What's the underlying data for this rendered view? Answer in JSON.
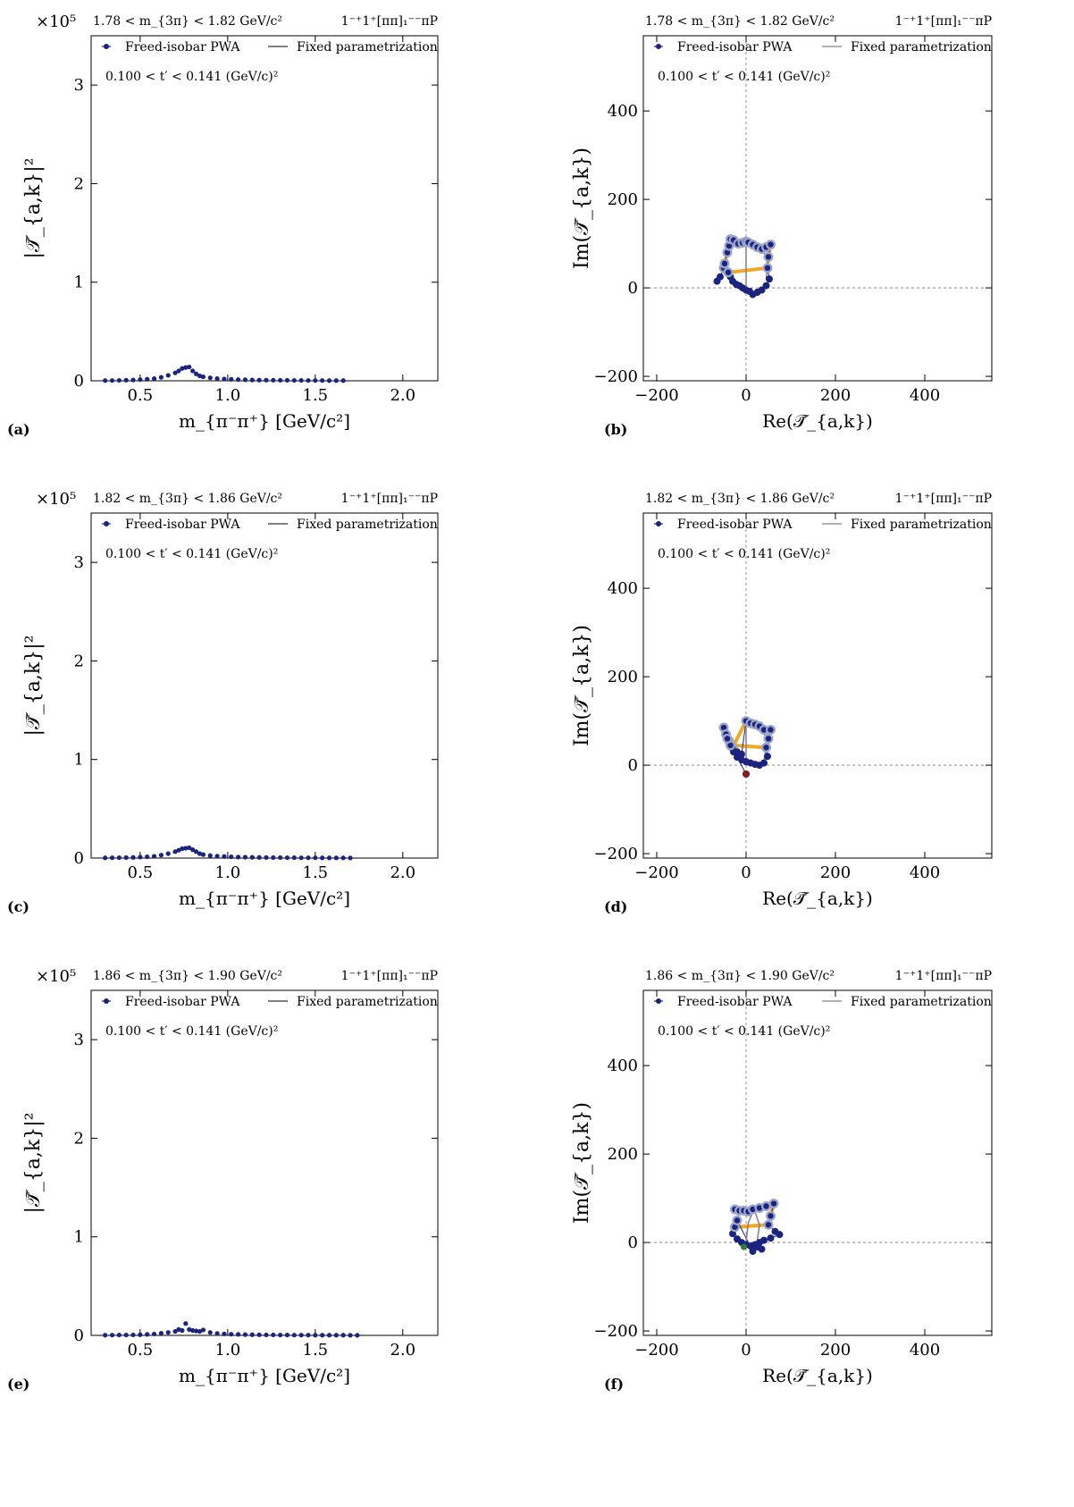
{
  "common": {
    "wave_label": "1⁻⁺1⁺[ππ]₁⁻⁻πP",
    "tprime_label": "0.100 < t′ < 0.141 (GeV/c)²",
    "legend_points": "Freed-isobar PWA",
    "legend_line": "Fixed parametrization",
    "left_xlabel": "m_{π⁻π⁺} [GeV/c²]",
    "left_ylabel": "|𝒯̄_{a,k}|²",
    "right_xlabel": "Re(𝒯̄_{a,k})",
    "right_ylabel": "Im(𝒯̄_{a,k})",
    "left_multiplier": "×10⁵",
    "colors": {
      "points": "#1a237e",
      "fixed": "#808080",
      "highlight": "#f5a623",
      "accent_dark_red": "#8b1a1a",
      "accent_green": "#2e7d32"
    }
  },
  "panels": [
    {
      "tag": "(a)",
      "mass_label": "1.78 < m_{3π} < 1.82 GeV/c²"
    },
    {
      "tag": "(b)",
      "mass_label": "1.78 < m_{3π} < 1.82 GeV/c²"
    },
    {
      "tag": "(c)",
      "mass_label": "1.82 < m_{3π} < 1.86 GeV/c²"
    },
    {
      "tag": "(d)",
      "mass_label": "1.82 < m_{3π} < 1.86 GeV/c²"
    },
    {
      "tag": "(e)",
      "mass_label": "1.86 < m_{3π} < 1.90 GeV/c²"
    },
    {
      "tag": "(f)",
      "mass_label": "1.86 < m_{3π} < 1.90 GeV/c²"
    }
  ],
  "chart_data": [
    {
      "type": "scatter",
      "panel": "(a)",
      "xlabel": "m_{π⁻π⁺} [GeV/c²]",
      "ylabel": "|𝒯̄_{a,k}|²",
      "ylabel_scale": "×10⁵",
      "xlim": [
        0.22,
        2.2
      ],
      "ylim": [
        0,
        3.5
      ],
      "xticks": [
        0.5,
        1.0,
        1.5,
        2.0
      ],
      "yticks": [
        0,
        1,
        2,
        3
      ],
      "series": [
        {
          "name": "Freed-isobar PWA",
          "x": [
            0.3,
            0.34,
            0.38,
            0.42,
            0.46,
            0.5,
            0.54,
            0.58,
            0.62,
            0.66,
            0.7,
            0.72,
            0.74,
            0.76,
            0.78,
            0.8,
            0.82,
            0.84,
            0.86,
            0.9,
            0.94,
            0.98,
            1.02,
            1.06,
            1.1,
            1.14,
            1.18,
            1.22,
            1.26,
            1.3,
            1.34,
            1.38,
            1.42,
            1.46,
            1.5,
            1.54,
            1.58,
            1.62,
            1.66
          ],
          "y": [
            0.002,
            0.003,
            0.004,
            0.006,
            0.008,
            0.012,
            0.016,
            0.022,
            0.035,
            0.055,
            0.08,
            0.1,
            0.125,
            0.135,
            0.14,
            0.1,
            0.07,
            0.05,
            0.04,
            0.03,
            0.022,
            0.018,
            0.015,
            0.012,
            0.01,
            0.008,
            0.007,
            0.006,
            0.006,
            0.005,
            0.005,
            0.004,
            0.004,
            0.003,
            0.003,
            0.003,
            0.002,
            0.002,
            0.002
          ]
        }
      ]
    },
    {
      "type": "argand",
      "panel": "(b)",
      "xlabel": "Re(𝒯̄_{a,k})",
      "ylabel": "Im(𝒯̄_{a,k})",
      "xlim": [
        -230,
        550
      ],
      "ylim": [
        -210,
        570
      ],
      "xticks": [
        -200,
        0,
        200,
        400
      ],
      "yticks": [
        -200,
        0,
        200,
        400
      ],
      "points": [
        [
          -65,
          15
        ],
        [
          -58,
          25
        ],
        [
          -50,
          45
        ],
        [
          -48,
          55
        ],
        [
          -42,
          80
        ],
        [
          -38,
          95
        ],
        [
          -35,
          110
        ],
        [
          -28,
          108
        ],
        [
          -18,
          100
        ],
        [
          -8,
          102
        ],
        [
          0,
          105
        ],
        [
          5,
          103
        ],
        [
          15,
          98
        ],
        [
          25,
          92
        ],
        [
          35,
          88
        ],
        [
          45,
          92
        ],
        [
          55,
          98
        ],
        [
          50,
          70
        ],
        [
          48,
          45
        ],
        [
          52,
          20
        ],
        [
          45,
          5
        ],
        [
          35,
          -5
        ],
        [
          25,
          -10
        ],
        [
          15,
          -15
        ],
        [
          8,
          -8
        ],
        [
          0,
          -5
        ],
        [
          -8,
          0
        ],
        [
          -15,
          5
        ],
        [
          -22,
          8
        ],
        [
          -30,
          15
        ],
        [
          -35,
          25
        ],
        [
          -40,
          35
        ]
      ],
      "fixed_path": [
        [
          0,
          0
        ],
        [
          0,
          100
        ],
        [
          25,
          93
        ],
        [
          50,
          70
        ],
        [
          45,
          20
        ]
      ]
    },
    {
      "type": "scatter",
      "panel": "(c)",
      "xlabel": "m_{π⁻π⁺} [GeV/c²]",
      "ylabel": "|𝒯̄_{a,k}|²",
      "ylabel_scale": "×10⁵",
      "xlim": [
        0.22,
        2.2
      ],
      "ylim": [
        0,
        3.5
      ],
      "xticks": [
        0.5,
        1.0,
        1.5,
        2.0
      ],
      "yticks": [
        0,
        1,
        2,
        3
      ],
      "series": [
        {
          "name": "Freed-isobar PWA",
          "x": [
            0.3,
            0.34,
            0.38,
            0.42,
            0.46,
            0.5,
            0.54,
            0.58,
            0.62,
            0.66,
            0.7,
            0.72,
            0.74,
            0.76,
            0.78,
            0.8,
            0.82,
            0.84,
            0.86,
            0.9,
            0.94,
            0.98,
            1.02,
            1.06,
            1.1,
            1.14,
            1.18,
            1.22,
            1.26,
            1.3,
            1.34,
            1.38,
            1.42,
            1.46,
            1.5,
            1.54,
            1.58,
            1.62,
            1.66,
            1.7
          ],
          "y": [
            0.002,
            0.003,
            0.004,
            0.005,
            0.007,
            0.01,
            0.013,
            0.018,
            0.03,
            0.045,
            0.065,
            0.08,
            0.095,
            0.1,
            0.105,
            0.085,
            0.065,
            0.045,
            0.035,
            0.025,
            0.02,
            0.016,
            0.013,
            0.01,
            0.009,
            0.008,
            0.007,
            0.006,
            0.005,
            0.005,
            0.004,
            0.004,
            0.003,
            0.003,
            0.003,
            0.002,
            0.002,
            0.002,
            0.002,
            0.001
          ]
        }
      ]
    },
    {
      "type": "argand",
      "panel": "(d)",
      "xlabel": "Re(𝒯̄_{a,k})",
      "ylabel": "Im(𝒯̄_{a,k})",
      "xlim": [
        -230,
        550
      ],
      "ylim": [
        -210,
        570
      ],
      "xticks": [
        -200,
        0,
        200,
        400
      ],
      "yticks": [
        -200,
        0,
        200,
        400
      ],
      "points": [
        [
          -50,
          85
        ],
        [
          -45,
          70
        ],
        [
          -38,
          55
        ],
        [
          -30,
          40
        ],
        [
          -20,
          30
        ],
        [
          -10,
          25
        ],
        [
          0,
          100
        ],
        [
          10,
          95
        ],
        [
          20,
          92
        ],
        [
          30,
          88
        ],
        [
          40,
          80
        ],
        [
          55,
          80
        ],
        [
          50,
          60
        ],
        [
          45,
          40
        ],
        [
          48,
          20
        ],
        [
          40,
          5
        ],
        [
          30,
          0
        ],
        [
          20,
          2
        ],
        [
          10,
          5
        ],
        [
          0,
          8
        ],
        [
          -10,
          12
        ],
        [
          -20,
          18
        ],
        [
          -28,
          30
        ],
        [
          -35,
          45
        ],
        [
          -42,
          60
        ],
        [
          0,
          -20
        ]
      ],
      "fixed_path": [
        [
          0,
          0
        ],
        [
          0,
          100
        ],
        [
          25,
          92
        ],
        [
          48,
          60
        ],
        [
          40,
          10
        ]
      ]
    },
    {
      "type": "scatter",
      "panel": "(e)",
      "xlabel": "m_{π⁻π⁺} [GeV/c²]",
      "ylabel": "|𝒯̄_{a,k}|²",
      "ylabel_scale": "×10⁵",
      "xlim": [
        0.22,
        2.2
      ],
      "ylim": [
        0,
        3.5
      ],
      "xticks": [
        0.5,
        1.0,
        1.5,
        2.0
      ],
      "yticks": [
        0,
        1,
        2,
        3
      ],
      "series": [
        {
          "name": "Freed-isobar PWA",
          "x": [
            0.3,
            0.34,
            0.38,
            0.42,
            0.46,
            0.5,
            0.54,
            0.58,
            0.62,
            0.66,
            0.7,
            0.72,
            0.74,
            0.76,
            0.78,
            0.8,
            0.82,
            0.84,
            0.86,
            0.9,
            0.94,
            0.98,
            1.02,
            1.06,
            1.1,
            1.14,
            1.18,
            1.22,
            1.26,
            1.3,
            1.34,
            1.38,
            1.42,
            1.46,
            1.5,
            1.54,
            1.58,
            1.62,
            1.66,
            1.7,
            1.74
          ],
          "y": [
            0.002,
            0.003,
            0.004,
            0.004,
            0.005,
            0.007,
            0.01,
            0.014,
            0.022,
            0.03,
            0.04,
            0.06,
            0.05,
            0.12,
            0.06,
            0.05,
            0.045,
            0.04,
            0.055,
            0.03,
            0.02,
            0.015,
            0.012,
            0.01,
            0.008,
            0.007,
            0.006,
            0.005,
            0.005,
            0.004,
            0.004,
            0.003,
            0.003,
            0.003,
            0.002,
            0.002,
            0.002,
            0.002,
            0.002,
            0.001,
            0.001
          ]
        }
      ]
    },
    {
      "type": "argand",
      "panel": "(f)",
      "xlabel": "Re(𝒯̄_{a,k})",
      "ylabel": "Im(𝒯̄_{a,k})",
      "xlim": [
        -230,
        550
      ],
      "ylim": [
        -210,
        570
      ],
      "xticks": [
        -200,
        0,
        200,
        400
      ],
      "yticks": [
        -200,
        0,
        200,
        400
      ],
      "points": [
        [
          -25,
          75
        ],
        [
          -15,
          72
        ],
        [
          -5,
          72
        ],
        [
          5,
          70
        ],
        [
          15,
          75
        ],
        [
          30,
          78
        ],
        [
          45,
          82
        ],
        [
          62,
          88
        ],
        [
          55,
          60
        ],
        [
          50,
          40
        ],
        [
          65,
          25
        ],
        [
          75,
          18
        ],
        [
          55,
          10
        ],
        [
          40,
          5
        ],
        [
          30,
          0
        ],
        [
          20,
          -5
        ],
        [
          10,
          -8
        ],
        [
          0,
          -5
        ],
        [
          -10,
          0
        ],
        [
          -20,
          8
        ],
        [
          -30,
          20
        ],
        [
          -25,
          35
        ],
        [
          -20,
          50
        ],
        [
          15,
          -20
        ],
        [
          25,
          -10
        ],
        [
          35,
          -15
        ]
      ],
      "fixed_path": [
        [
          0,
          0
        ],
        [
          5,
          45
        ],
        [
          18,
          75
        ],
        [
          30,
          40
        ],
        [
          25,
          5
        ]
      ]
    }
  ]
}
